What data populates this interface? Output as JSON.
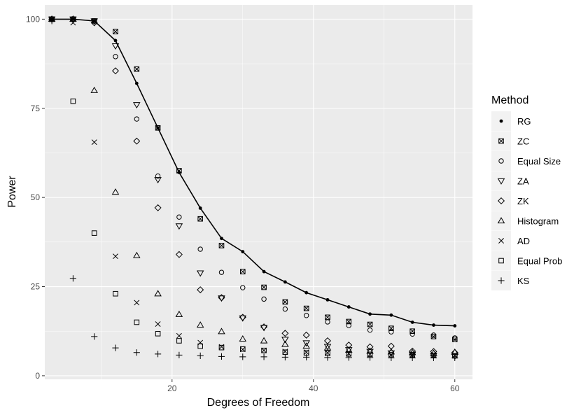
{
  "chart_data": {
    "type": "scatter",
    "title": "",
    "xlabel": "Degrees of Freedom",
    "ylabel": "Power",
    "xlim": [
      2,
      62.5
    ],
    "ylim": [
      -1,
      104
    ],
    "xticks": [
      20,
      40,
      60
    ],
    "xtick_labels": [
      "20",
      "40",
      "60"
    ],
    "yticks": [
      0,
      25,
      50,
      75,
      100
    ],
    "ytick_labels": [
      "0",
      "25",
      "50",
      "75",
      "100"
    ],
    "grid": true,
    "background": "#ebebeb",
    "grid_major_color": "#ffffff",
    "legend_position": "right",
    "legend_title": "Method",
    "x": [
      3,
      6,
      9,
      12,
      15,
      18,
      21,
      24,
      27,
      30,
      33,
      36,
      39,
      42,
      45,
      48,
      51,
      54,
      57,
      60
    ],
    "series": [
      {
        "name": "RG",
        "shape": "dot",
        "connected": true,
        "values": [
          100,
          100,
          99.5,
          94,
          82,
          69.5,
          57,
          47,
          38.5,
          34.8,
          29.2,
          26.3,
          23.3,
          21.3,
          19.3,
          17.3,
          17.0,
          15.0,
          14.2,
          14.0
        ]
      },
      {
        "name": "ZC",
        "shape": "boxcross",
        "values": [
          100,
          100,
          99.5,
          96.5,
          86,
          69.5,
          57.5,
          44,
          36.5,
          29.2,
          24.8,
          20.7,
          18.9,
          16.4,
          15.2,
          14.4,
          13.3,
          12.5,
          11.0,
          10.2
        ]
      },
      {
        "name": "Equal Size",
        "shape": "circle",
        "values": [
          100,
          100,
          99.5,
          89.5,
          72,
          56,
          44.5,
          35.5,
          29,
          24.7,
          21.5,
          18.7,
          16.9,
          15.1,
          14.1,
          12.8,
          12.3,
          11.7,
          11.4,
          10.6
        ]
      },
      {
        "name": "ZA",
        "shape": "triangle-down",
        "values": [
          100,
          100,
          99.5,
          92.5,
          76,
          55,
          42,
          28.8,
          21.8,
          16.2,
          13.5,
          10.2,
          9.2,
          8.2,
          7.3,
          6.8,
          6.4,
          6.0,
          5.7,
          5.5
        ]
      },
      {
        "name": "ZK",
        "shape": "diamond",
        "values": [
          100,
          100,
          99,
          85.5,
          65.8,
          47.1,
          34,
          24.1,
          21.9,
          16.4,
          13.7,
          11.9,
          11.4,
          9.8,
          8.6,
          8.1,
          8.3,
          6.9,
          6.8,
          6.5
        ]
      },
      {
        "name": "Histogram",
        "shape": "triangle-up",
        "values": [
          100,
          100,
          80,
          51.5,
          33.7,
          23,
          17.2,
          14.2,
          12.4,
          10.3,
          9.8,
          8.8,
          8.3,
          7.8,
          7.2,
          6.9,
          6.7,
          6.5,
          6.3,
          6.6
        ]
      },
      {
        "name": "AD",
        "shape": "x",
        "values": [
          100,
          99,
          65.5,
          33.5,
          20.5,
          14.5,
          11.2,
          9.3,
          8.1,
          7.4,
          7.1,
          6.8,
          6.6,
          6.4,
          6.2,
          6.0,
          5.9,
          5.8,
          5.7,
          5.6
        ]
      },
      {
        "name": "Equal Prob",
        "shape": "square",
        "values": [
          100,
          77,
          40,
          23,
          15,
          11.8,
          9.8,
          8.3,
          7.9,
          7.5,
          7.1,
          6.6,
          6.4,
          6.3,
          6.1,
          6.0,
          5.9,
          5.8,
          5.7,
          5.6
        ]
      },
      {
        "name": "KS",
        "shape": "plus",
        "values": [
          99.5,
          27.3,
          11,
          7.8,
          6.5,
          6.1,
          5.8,
          5.6,
          5.4,
          5.3,
          5.3,
          5.2,
          5.2,
          5.1,
          5.1,
          5.1,
          5.0,
          5.0,
          5.0,
          5.0
        ]
      }
    ]
  }
}
